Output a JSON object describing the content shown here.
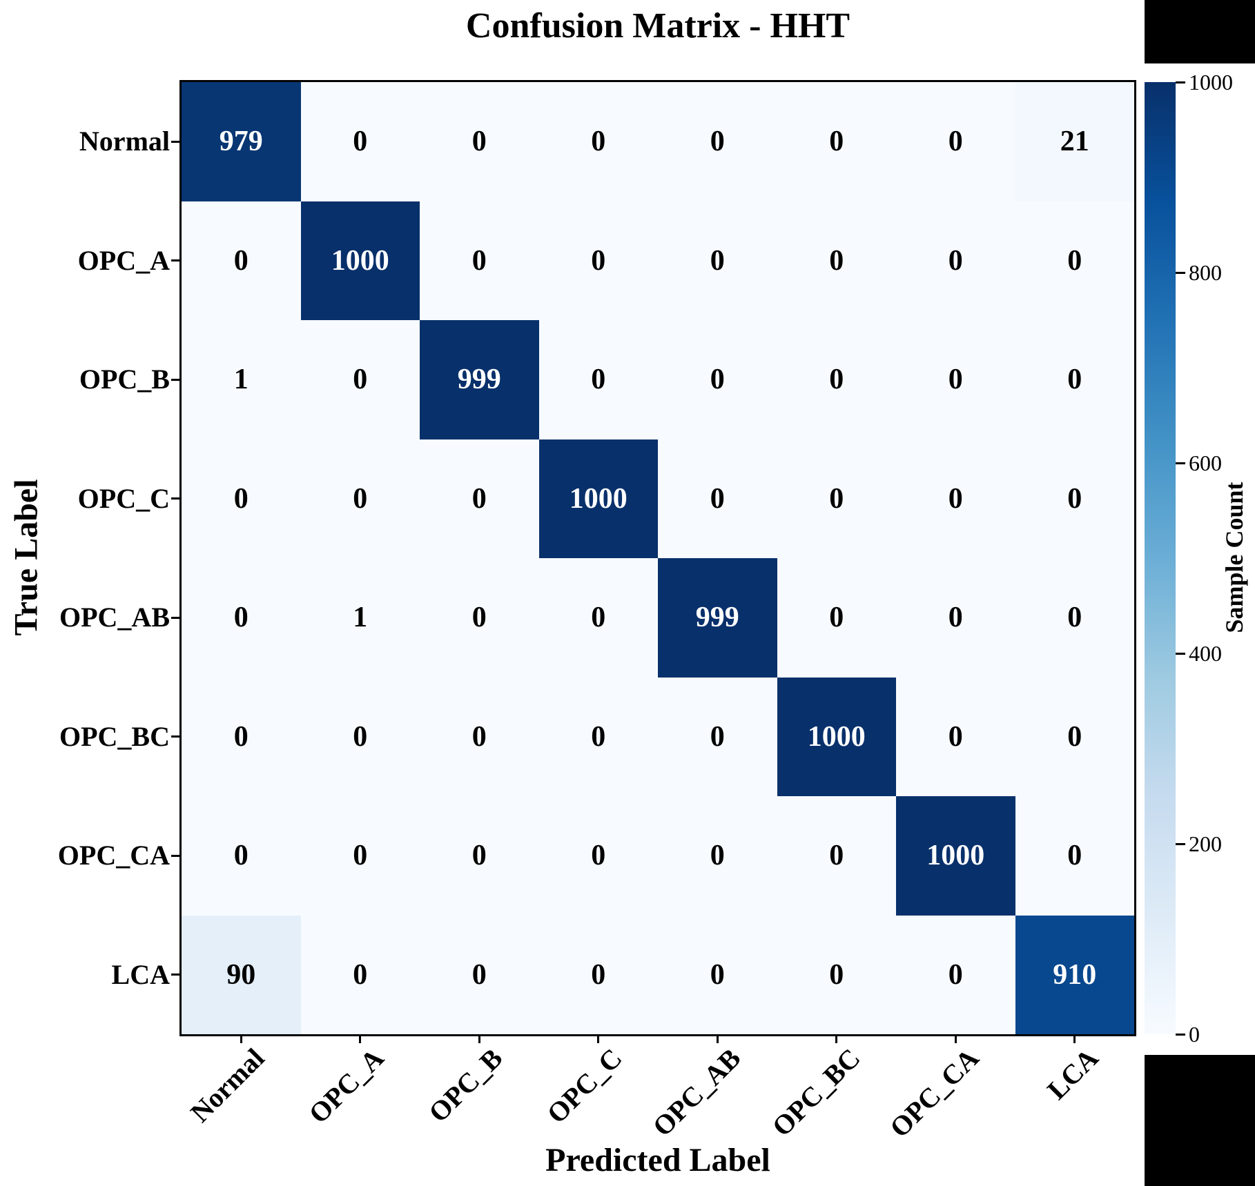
{
  "title": "Confusion Matrix - HHT",
  "chart_data": {
    "type": "heatmap",
    "title": "Confusion Matrix - HHT",
    "xlabel": "Predicted Label",
    "ylabel": "True Label",
    "x_tick_labels": [
      "Normal",
      "OPC_A",
      "OPC_B",
      "OPC_C",
      "OPC_AB",
      "OPC_BC",
      "OPC_CA",
      "LCA"
    ],
    "y_tick_labels": [
      "Normal",
      "OPC_A",
      "OPC_B",
      "OPC_C",
      "OPC_AB",
      "OPC_BC",
      "OPC_CA",
      "LCA"
    ],
    "matrix": [
      [
        979,
        0,
        0,
        0,
        0,
        0,
        0,
        21
      ],
      [
        0,
        1000,
        0,
        0,
        0,
        0,
        0,
        0
      ],
      [
        1,
        0,
        999,
        0,
        0,
        0,
        0,
        0
      ],
      [
        0,
        0,
        0,
        1000,
        0,
        0,
        0,
        0
      ],
      [
        0,
        1,
        0,
        0,
        999,
        0,
        0,
        0
      ],
      [
        0,
        0,
        0,
        0,
        0,
        1000,
        0,
        0
      ],
      [
        0,
        0,
        0,
        0,
        0,
        0,
        1000,
        0
      ],
      [
        90,
        0,
        0,
        0,
        0,
        0,
        0,
        910
      ]
    ],
    "vmin": 0,
    "vmax": 1000,
    "grid": false,
    "colorbar": {
      "label": "Sample Count",
      "position": "right",
      "tick_values": [
        1000,
        800,
        600,
        400,
        200,
        0
      ],
      "tick_labels": [
        "1000",
        "800",
        "600",
        "400",
        "200",
        "0"
      ]
    },
    "colormap_name": "Blues",
    "colormap_stops": [
      "#f7fbff",
      "#deebf7",
      "#c6dbef",
      "#9ecae1",
      "#6baed6",
      "#4292c6",
      "#2171b5",
      "#08519c",
      "#08306b"
    ],
    "cell_text_color_on_dark": "#ffffff",
    "cell_text_color_on_light": "#000000",
    "axis_color": "#000000"
  }
}
